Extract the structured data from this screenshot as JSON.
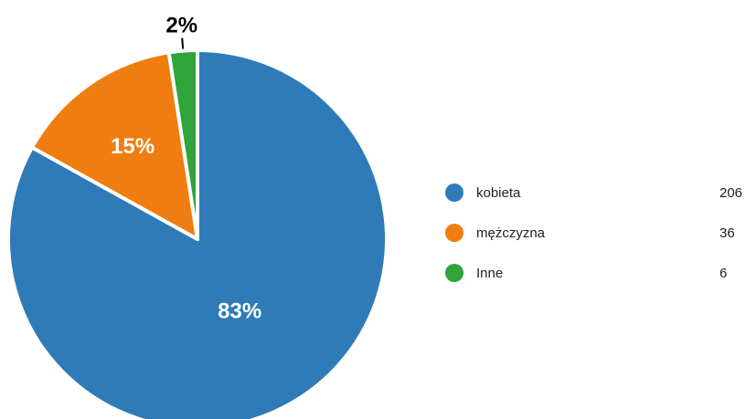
{
  "chart_data": {
    "type": "pie",
    "categories": [
      "kobieta",
      "mężczyzna",
      "Inne"
    ],
    "values": [
      206,
      36,
      6
    ],
    "percent_labels": [
      "83%",
      "15%",
      "2%"
    ],
    "colors": [
      "#2e7bb8",
      "#f07d0f",
      "#2ea43a"
    ],
    "legend_position": "right"
  }
}
